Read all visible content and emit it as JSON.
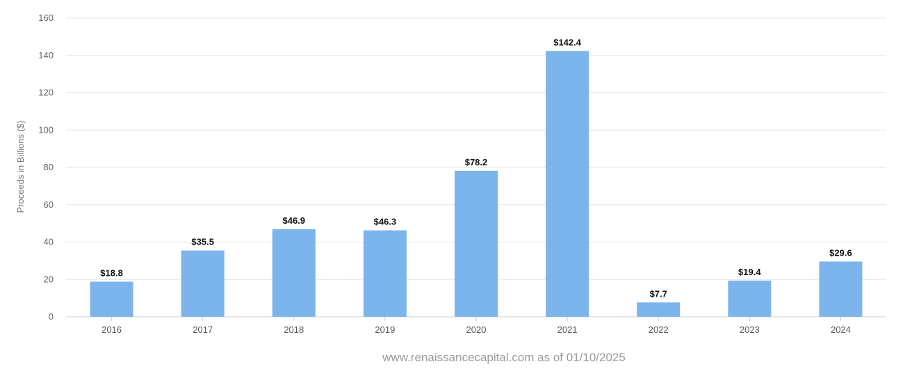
{
  "chart_data": {
    "type": "bar",
    "categories": [
      "2016",
      "2017",
      "2018",
      "2019",
      "2020",
      "2021",
      "2022",
      "2023",
      "2024"
    ],
    "values": [
      18.8,
      35.5,
      46.9,
      46.3,
      78.2,
      142.4,
      7.7,
      19.4,
      29.6
    ],
    "value_labels": [
      "$18.8",
      "$35.5",
      "$46.9",
      "$46.3",
      "$78.2",
      "$142.4",
      "$7.7",
      "$19.4",
      "$29.6"
    ],
    "ylabel": "Proceeds in Billions ($)",
    "xlabel": "",
    "ylim": [
      0,
      160
    ],
    "yticks": [
      "0",
      "20",
      "40",
      "60",
      "80",
      "100",
      "120",
      "140",
      "160"
    ],
    "grid": true,
    "legend": "none",
    "bar_color": "#7cb5ec"
  },
  "footer": {
    "source": "www.renaissancecapital.com as of 01/10/2025"
  }
}
